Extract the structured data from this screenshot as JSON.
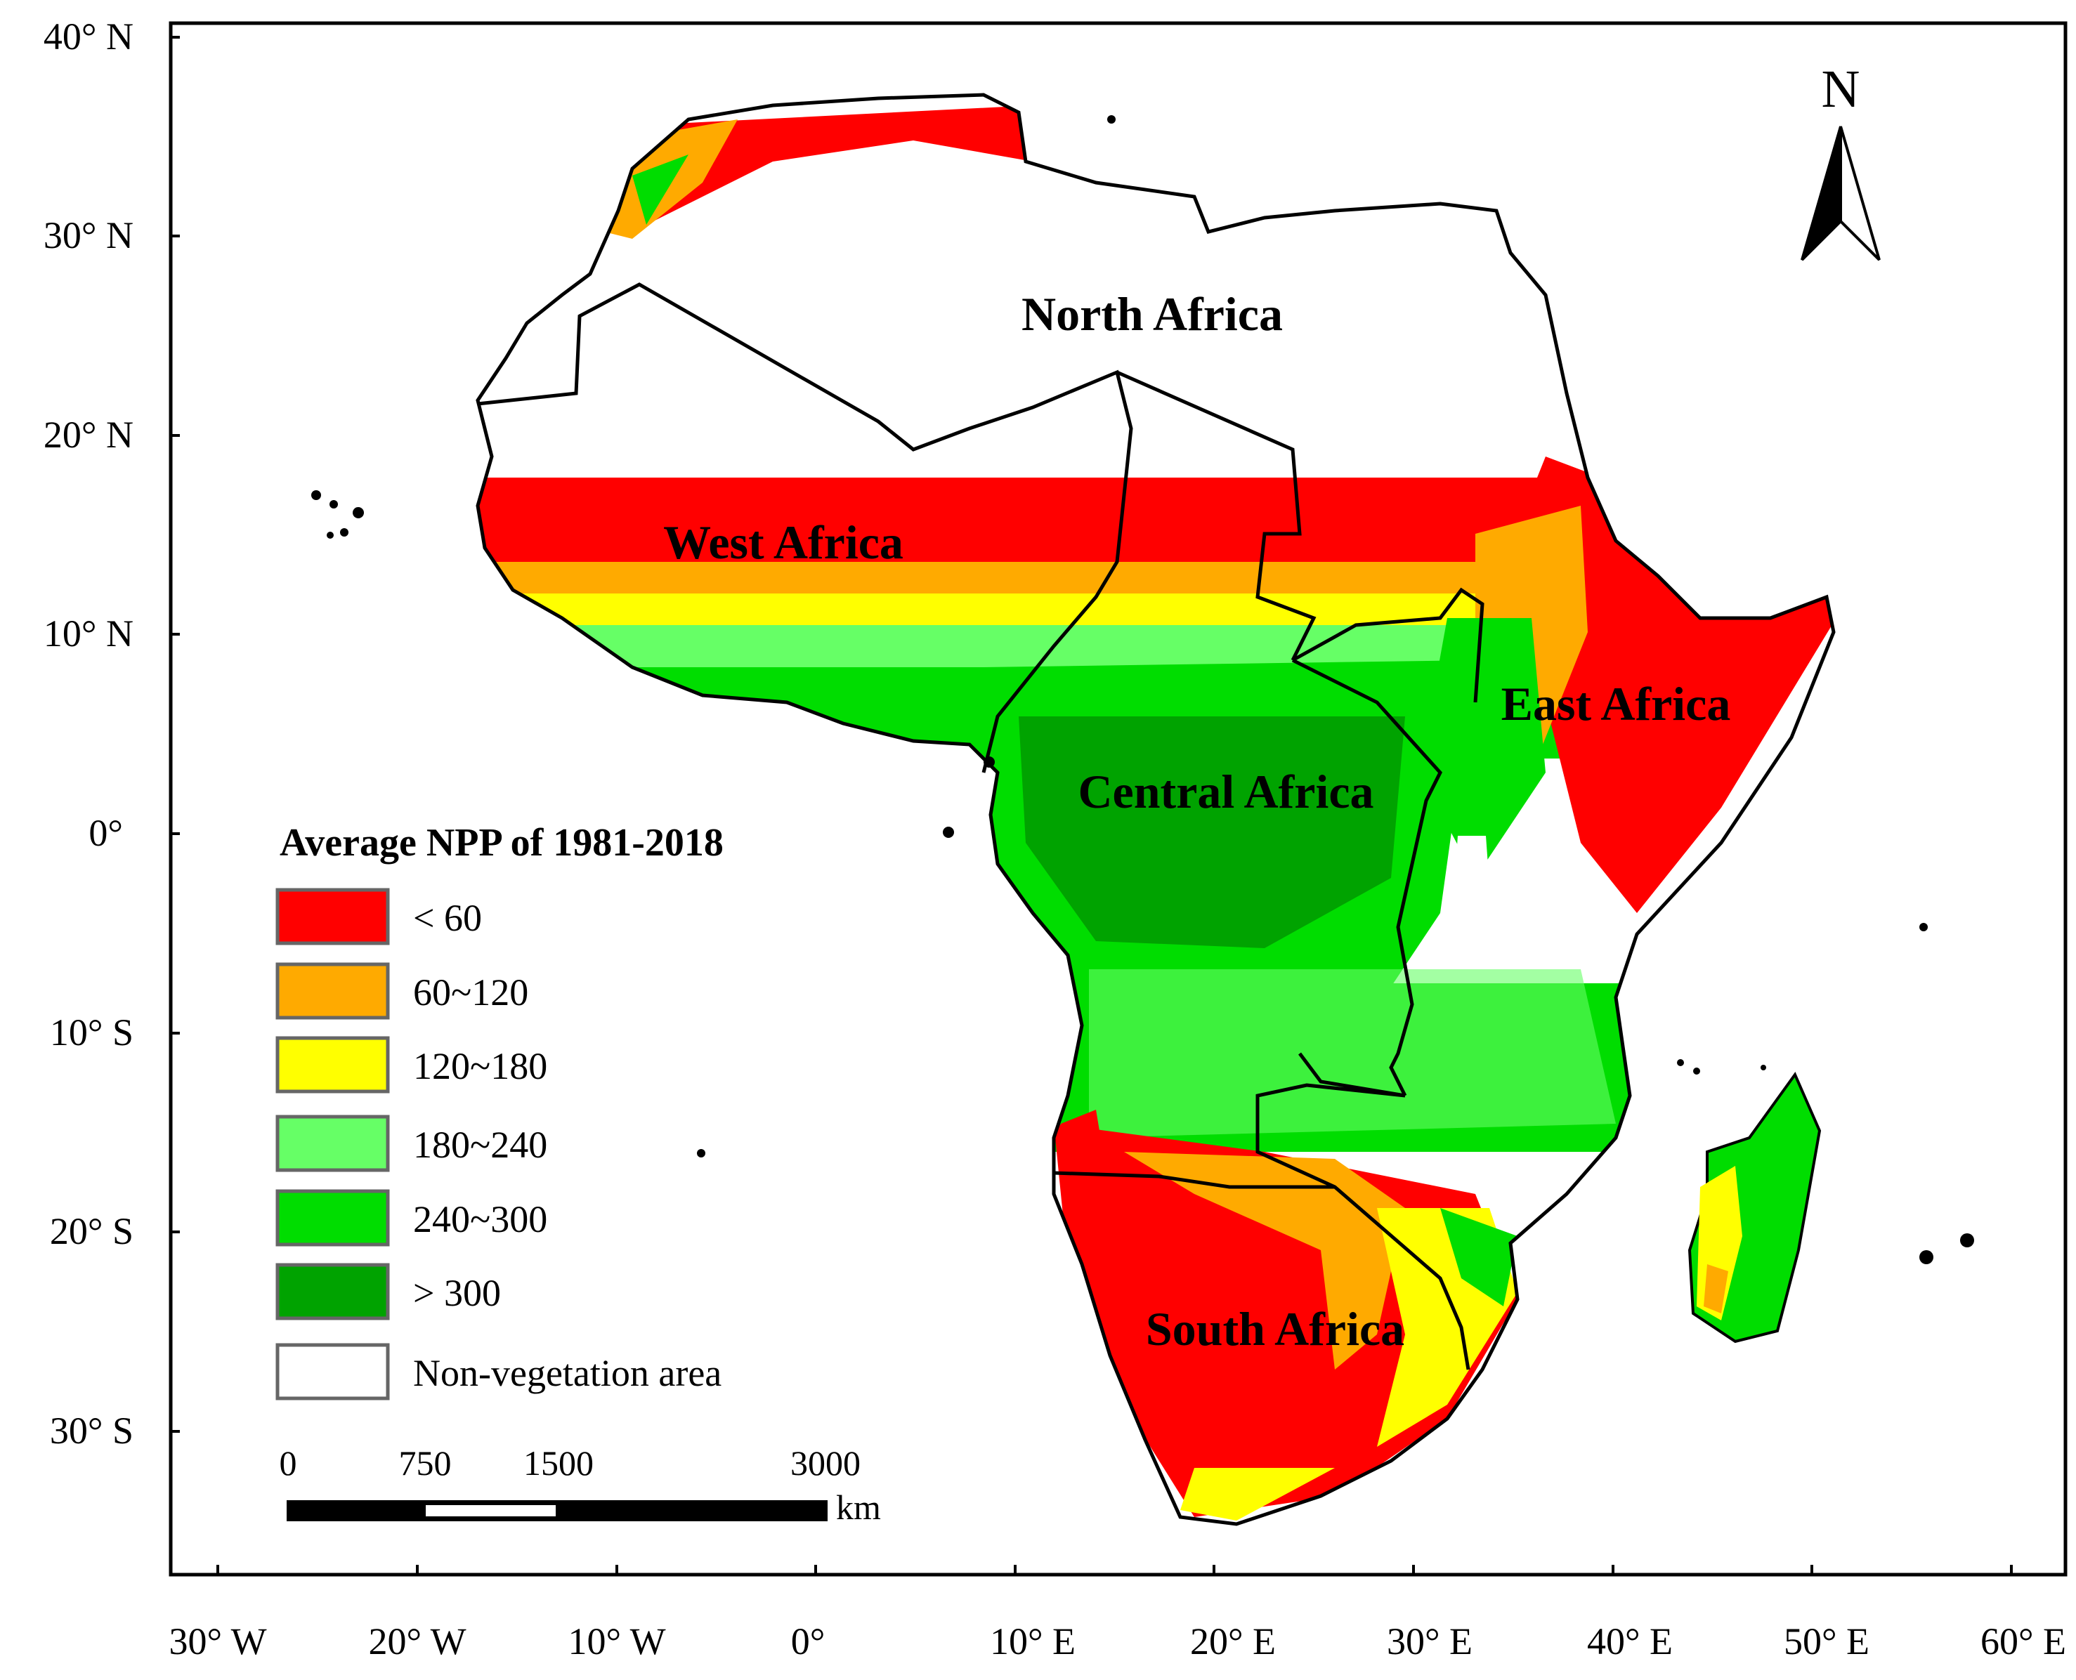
{
  "map": {
    "axes": {
      "lat_labels": [
        "40° N",
        "30° N",
        "20° N",
        "10° N",
        "0°",
        "10° S",
        "20° S",
        "30° S"
      ],
      "lon_labels": [
        "30° W",
        "20° W",
        "10° W",
        "0°",
        "10° E",
        "20° E",
        "30° E",
        "40° E",
        "50° E",
        "60° E"
      ]
    },
    "regions": [
      "North Africa",
      "West Africa",
      "East Africa",
      "Central Africa",
      "South Africa"
    ],
    "north_arrow": "N",
    "legend": {
      "title": "Average NPP of 1981-2018",
      "items": [
        {
          "label": "< 60",
          "color": "#ff0000"
        },
        {
          "label": "60~120",
          "color": "#ffaa00"
        },
        {
          "label": "120~180",
          "color": "#ffff00"
        },
        {
          "label": "180~240",
          "color": "#66ff66"
        },
        {
          "label": "240~300",
          "color": "#00dd00"
        },
        {
          "label": "> 300",
          "color": "#00a300"
        },
        {
          "label": "Non-vegetation area",
          "color": "#ffffff"
        }
      ]
    },
    "scale_bar": {
      "ticks": [
        "0",
        "750",
        "1500",
        "3000"
      ],
      "unit": "km"
    }
  }
}
